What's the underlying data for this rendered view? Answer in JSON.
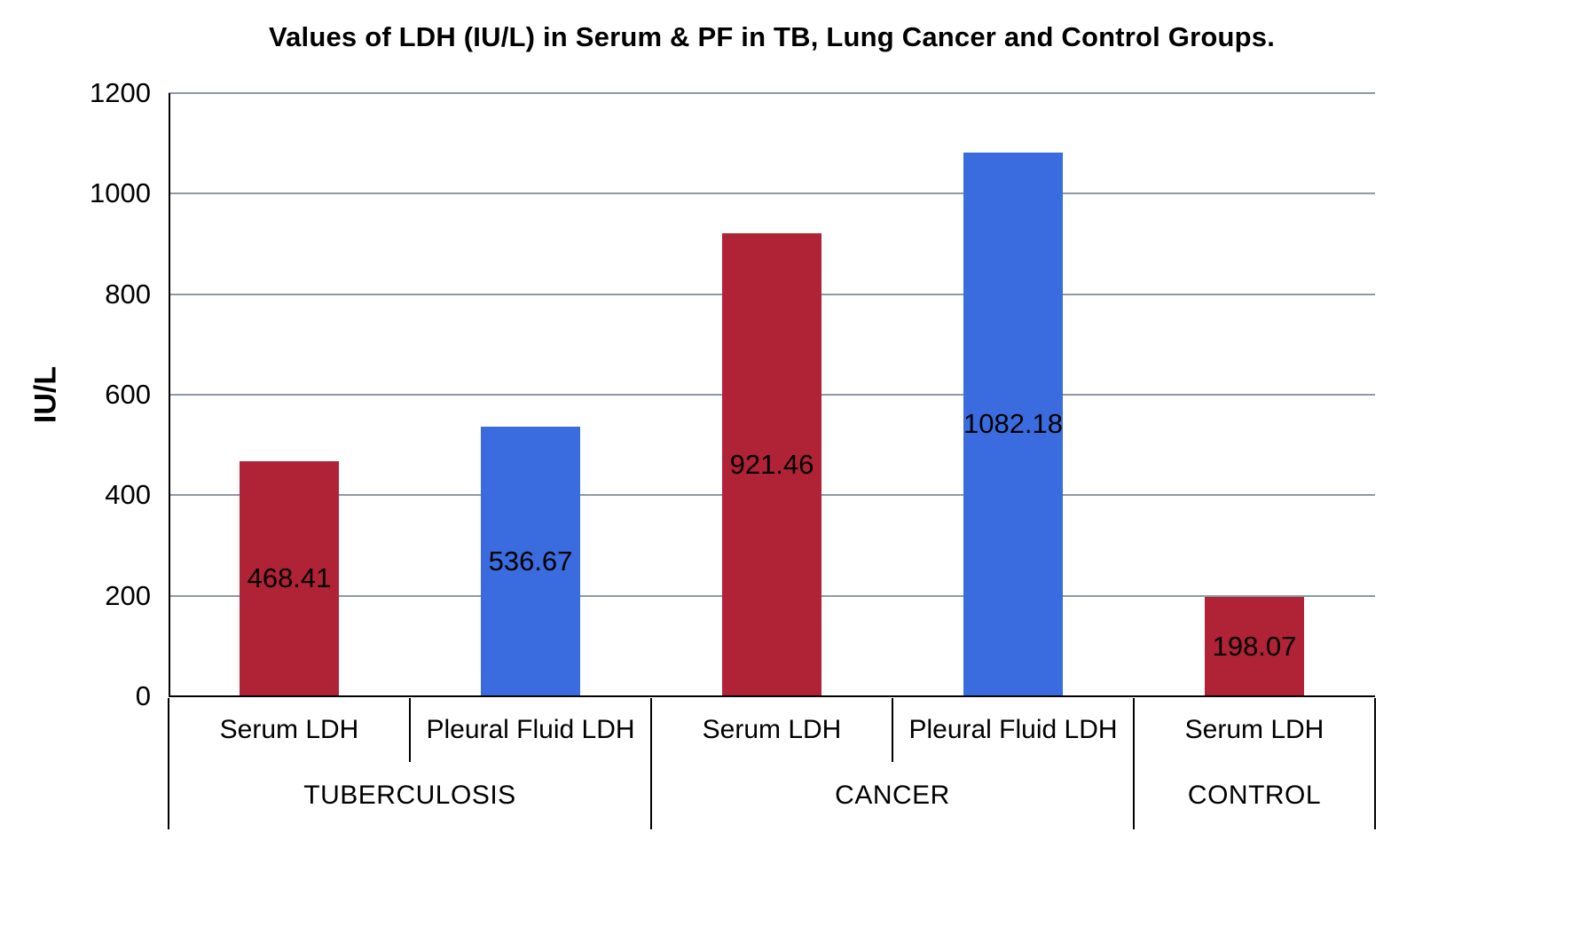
{
  "chart_data": {
    "type": "bar",
    "title": "Values of LDH (IU/L) in Serum & PF in TB, Lung Cancer and Control Groups.",
    "ylabel": "IU/L",
    "xlabel": "",
    "ylim": [
      0,
      1200
    ],
    "yticks": [
      0,
      200,
      400,
      600,
      800,
      1000,
      1200
    ],
    "grid": true,
    "legend": "none",
    "categories": [
      "Serum LDH",
      "Pleural Fluid LDH",
      "Serum LDH",
      "Pleural Fluid LDH",
      "Serum LDH"
    ],
    "groups": [
      {
        "label": "TUBERCULOSIS",
        "span": 2
      },
      {
        "label": "CANCER",
        "span": 2
      },
      {
        "label": "CONTROL",
        "span": 1
      }
    ],
    "values": [
      468.41,
      536.67,
      921.46,
      1082.18,
      198.07
    ],
    "value_labels": [
      "468.41",
      "536.67",
      "921.46",
      "1082.18",
      "198.07"
    ],
    "bar_colors": [
      "#b02236",
      "#3a6ce0",
      "#b02236",
      "#3a6ce0",
      "#b02236"
    ],
    "colors": {
      "serum_ldh": "#b02236",
      "pleural_fluid_ldh": "#3a6ce0",
      "gridline": "#8d99a5",
      "axis": "#000000",
      "background": "#ffffff",
      "text": "#000000"
    }
  }
}
